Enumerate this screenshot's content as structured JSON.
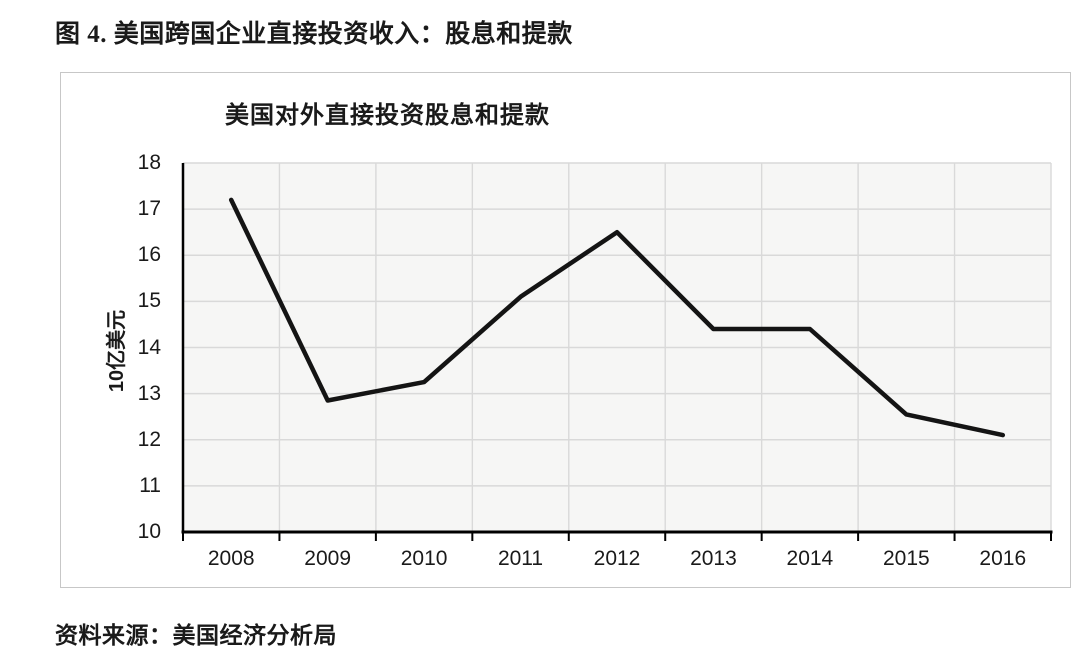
{
  "page": {
    "title": "图 4. 美国跨国企业直接投资收入：股息和提款",
    "source": "资料来源：美国经济分析局"
  },
  "chart_data": {
    "type": "line",
    "title": "美国对外直接投资股息和提款",
    "ylabel": "10亿美元",
    "xlabel": "",
    "categories": [
      "2008",
      "2009",
      "2010",
      "2011",
      "2012",
      "2013",
      "2014",
      "2015",
      "2016"
    ],
    "values": [
      17.2,
      12.85,
      13.25,
      15.1,
      16.5,
      14.4,
      14.4,
      12.55,
      12.1
    ],
    "ylim": [
      10,
      18
    ],
    "ytick_step": 1,
    "grid": true,
    "legend": "none",
    "line_color": "#141414",
    "axis_color": "#000000",
    "plot_bg": "#f6f6f5",
    "gridline_color": "#d9d9d9",
    "tick_label_color": "#1a1a1a"
  }
}
